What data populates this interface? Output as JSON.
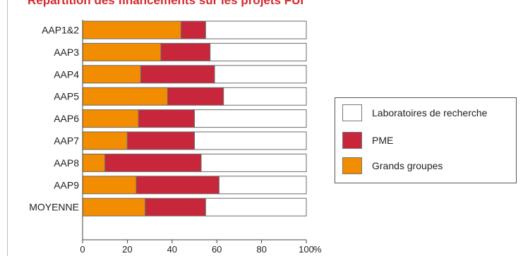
{
  "title": "Répartition des financements sur les projets FUI",
  "chart_data": {
    "type": "bar",
    "orientation": "horizontal",
    "stacked": true,
    "categories": [
      "AAP1&2",
      "AAP3",
      "AAP4",
      "AAP5",
      "AAP6",
      "AAP7",
      "AAP8",
      "AAP9",
      "MOYENNE"
    ],
    "series": [
      {
        "name": "Grands groupes",
        "color": "#f28c00",
        "values": [
          44,
          35,
          26,
          38,
          25,
          20,
          10,
          24,
          28
        ]
      },
      {
        "name": "PME",
        "color": "#c8263a",
        "values": [
          11,
          22,
          33,
          25,
          25,
          30,
          43,
          37,
          27
        ]
      },
      {
        "name": "Laboratoires de recherche",
        "color": "#ffffff",
        "values": [
          45,
          43,
          41,
          37,
          50,
          50,
          47,
          39,
          45
        ]
      }
    ],
    "x_ticks": [
      "0",
      "20",
      "40",
      "60",
      "80",
      "100"
    ],
    "x_unit": "%",
    "xlim": [
      0,
      100
    ],
    "grid": false,
    "legend_position": "right",
    "legend_order": [
      "Laboratoires de recherche",
      "PME",
      "Grands groupes"
    ]
  }
}
